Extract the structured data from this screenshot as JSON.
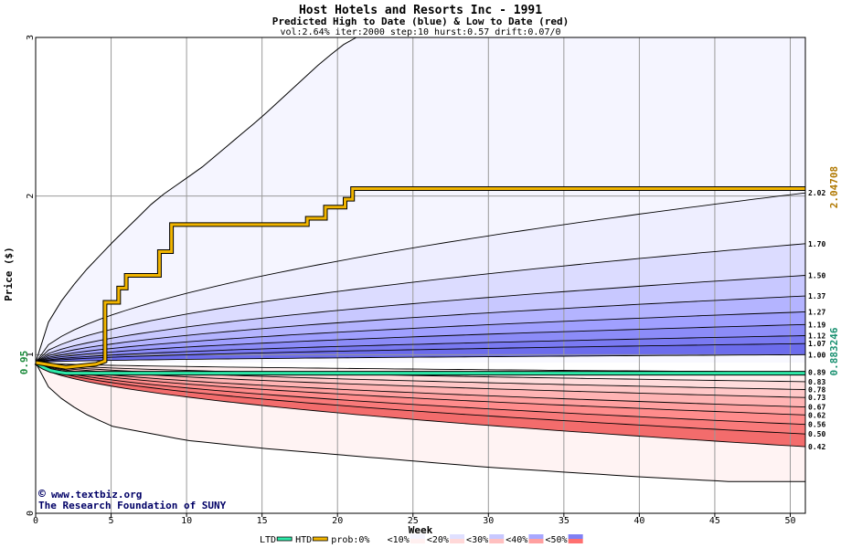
{
  "chart_data": {
    "type": "area",
    "title": "Host Hotels and Resorts Inc - 1991",
    "subtitle": "Predicted High to Date (blue) &  Low to Date (red)",
    "params": "vol:2.64% iter:2000 step:10 hurst:0.57 drift:0.07/0",
    "xlabel": "Week",
    "ylabel": "Price ($)",
    "xlim": [
      0,
      51
    ],
    "ylim": [
      0,
      3
    ],
    "x_ticks": [
      0,
      5,
      10,
      15,
      20,
      25,
      30,
      35,
      40,
      45,
      50
    ],
    "y_ticks": [
      0,
      1,
      2,
      3
    ],
    "grid": true,
    "start_price": 0.95,
    "start_price_label": "0.95",
    "htd_final_label": "2.04708",
    "ltd_final_label": "0.883246",
    "high_quantiles_at_end": [
      1.0,
      1.07,
      1.12,
      1.19,
      1.27,
      1.37,
      1.5,
      1.7,
      2.02
    ],
    "high_quantile_labels": [
      "1.00",
      "1.07",
      "1.12",
      "1.19",
      "1.27",
      "1.37",
      "1.50",
      "1.70",
      "2.02"
    ],
    "low_quantiles_at_end": [
      0.89,
      0.83,
      0.78,
      0.73,
      0.67,
      0.62,
      0.56,
      0.5,
      0.42
    ],
    "low_quantile_labels": [
      "0.89",
      "0.83",
      "0.78",
      "0.73",
      "0.67",
      "0.62",
      "0.56",
      "0.50",
      "0.42"
    ],
    "max_envelope": {
      "x": [
        0,
        1,
        3,
        5,
        8,
        11,
        15,
        19,
        21
      ],
      "y": [
        0.95,
        1.25,
        1.5,
        1.7,
        1.98,
        2.18,
        2.5,
        2.85,
        3.0
      ]
    },
    "min_envelope": {
      "x": [
        0,
        1,
        3,
        5,
        10,
        15,
        20,
        30,
        40,
        46,
        51
      ],
      "y": [
        0.95,
        0.77,
        0.64,
        0.55,
        0.46,
        0.41,
        0.37,
        0.29,
        0.23,
        0.2,
        0.2
      ]
    },
    "htd_series": {
      "name": "HTD",
      "x": [
        0,
        2,
        4,
        4.6,
        4.6,
        5.5,
        5.5,
        6,
        6,
        8.2,
        8.2,
        9,
        9,
        18,
        18,
        19.2,
        19.2,
        20.5,
        20.5,
        21,
        21,
        51
      ],
      "y": [
        0.95,
        0.92,
        0.94,
        0.96,
        1.33,
        1.33,
        1.42,
        1.42,
        1.5,
        1.5,
        1.65,
        1.65,
        1.82,
        1.82,
        1.86,
        1.86,
        1.93,
        1.93,
        1.98,
        1.98,
        2.04708,
        2.04708
      ]
    },
    "ltd_series": {
      "name": "LTD",
      "x": [
        0,
        0.5,
        1,
        1.5,
        2,
        51
      ],
      "y": [
        0.95,
        0.92,
        0.9,
        0.89,
        0.883246,
        0.883246
      ]
    },
    "legend": {
      "placement": "bottom",
      "items": [
        {
          "label": "LTD",
          "color": "#2ee8a8"
        },
        {
          "label": "HTD",
          "color": "#f0b400"
        },
        {
          "label": "prob:0%",
          "color": "#ffffff"
        },
        {
          "label": "<10%",
          "color": "#f4f4ff"
        },
        {
          "label": "<20%",
          "color": "#e0e0ff"
        },
        {
          "label": "<30%",
          "color": "#c8c8ff"
        },
        {
          "label": "<40%",
          "color": "#a8a8ff"
        },
        {
          "label": "<50%",
          "color": "#8080f4"
        }
      ]
    },
    "legend_low_colors": [
      "#ffffff",
      "#fff0f0",
      "#ffd8d8",
      "#ffc0c0",
      "#ffa0a0",
      "#ff7070"
    ]
  },
  "credit": {
    "copyright_symbol": "©",
    "url": "www.textbiz.org",
    "org": "The Research Foundation of SUNY"
  },
  "colors": {
    "blue_bands": [
      "#eeeeff",
      "#dcdcff",
      "#c8c8ff",
      "#b4b4ff",
      "#a0a0ff",
      "#8c8cf8",
      "#7a7af2",
      "#6c6cec"
    ],
    "red_bands": [
      "#ffeeee",
      "#ffdcdc",
      "#ffc8c8",
      "#ffb4b4",
      "#ffa0a0",
      "#ff8c8c",
      "#f97a7a",
      "#f36c6c"
    ],
    "outer_blue": "#f5f5ff",
    "outer_red": "#fff3f3",
    "grid": "#999999",
    "htd": "#f0b400",
    "ltd": "#2ee8a8",
    "htd_label": "#b07800",
    "ltd_label": "#189070"
  }
}
